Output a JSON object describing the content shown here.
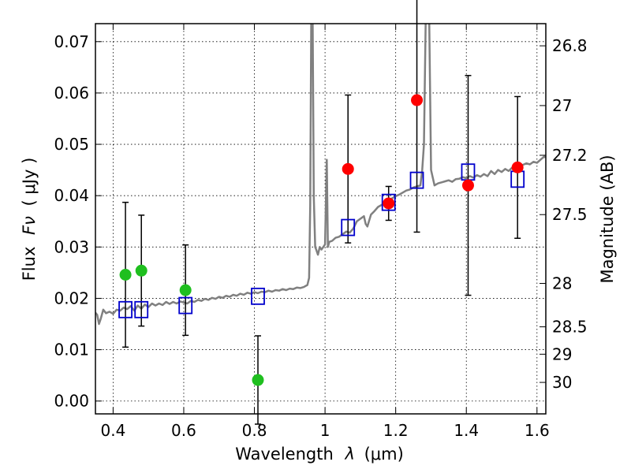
{
  "chart_data": {
    "type": "scatter",
    "xlabel_text": "Wavelength",
    "xlabel_symbol": "λ",
    "xlabel_unit": "(μm)",
    "ylabel_text": "Flux",
    "ylabel_symbol": "Fν",
    "ylabel_unit": "( μJy )",
    "y2label": "Magnitude (AB)",
    "xlim": [
      0.35,
      1.625
    ],
    "ylim": [
      -0.0025,
      0.0735
    ],
    "x_ticks": [
      0.4,
      0.6,
      0.8,
      1.0,
      1.2,
      1.4,
      1.6
    ],
    "x_tick_labels": [
      "0.4",
      "0.6",
      "0.8",
      "1",
      "1.2",
      "1.4",
      "1.6"
    ],
    "y_ticks": [
      0.0,
      0.01,
      0.02,
      0.03,
      0.04,
      0.05,
      0.06,
      0.07
    ],
    "y_tick_labels": [
      "0.00",
      "0.01",
      "0.02",
      "0.03",
      "0.04",
      "0.05",
      "0.06",
      "0.07"
    ],
    "mag_ticks": [
      {
        "mag": 26.8,
        "label": "26.8"
      },
      {
        "mag": 27.0,
        "label": "27"
      },
      {
        "mag": 27.2,
        "label": "27.2"
      },
      {
        "mag": 27.5,
        "label": "27.5"
      },
      {
        "mag": 28.0,
        "label": "28"
      },
      {
        "mag": 28.5,
        "label": "28.5"
      },
      {
        "mag": 29.0,
        "label": "29"
      },
      {
        "mag": 30.0,
        "label": "30"
      }
    ],
    "grid": true,
    "colors": {
      "green": "#1fbf1f",
      "red": "#ff0000",
      "model": "#0000cc",
      "sed": "#808080",
      "errorbar": "#000000"
    },
    "green_points": [
      {
        "x": 0.435,
        "y": 0.0246,
        "yerr_low": 0.0141,
        "yerr_high": 0.0141
      },
      {
        "x": 0.48,
        "y": 0.0254,
        "yerr_low": 0.0108,
        "yerr_high": 0.0108
      },
      {
        "x": 0.605,
        "y": 0.0216,
        "yerr_low": 0.0088,
        "yerr_high": 0.0088
      },
      {
        "x": 0.81,
        "y": 0.0041,
        "yerr_low": 0.0086,
        "yerr_high": 0.0086
      }
    ],
    "red_points": [
      {
        "x": 1.065,
        "y": 0.0452,
        "yerr_low": 0.0144,
        "yerr_high": 0.0144
      },
      {
        "x": 1.18,
        "y": 0.0385,
        "yerr_low": 0.0033,
        "yerr_high": 0.0033
      },
      {
        "x": 1.26,
        "y": 0.0586,
        "yerr_low": 0.0257,
        "yerr_high": 0.0257
      },
      {
        "x": 1.405,
        "y": 0.042,
        "yerr_low": 0.0214,
        "yerr_high": 0.0214
      },
      {
        "x": 1.545,
        "y": 0.0455,
        "yerr_low": 0.0138,
        "yerr_high": 0.0138
      }
    ],
    "model_points": [
      {
        "x": 0.435,
        "y": 0.0178
      },
      {
        "x": 0.48,
        "y": 0.0178
      },
      {
        "x": 0.605,
        "y": 0.0186
      },
      {
        "x": 0.81,
        "y": 0.0204
      },
      {
        "x": 1.065,
        "y": 0.0338
      },
      {
        "x": 1.18,
        "y": 0.0387
      },
      {
        "x": 1.26,
        "y": 0.043
      },
      {
        "x": 1.405,
        "y": 0.0446
      },
      {
        "x": 1.545,
        "y": 0.0432
      }
    ],
    "sed_curve": [
      [
        0.35,
        0.0172
      ],
      [
        0.355,
        0.0168
      ],
      [
        0.36,
        0.015
      ],
      [
        0.365,
        0.016
      ],
      [
        0.372,
        0.0178
      ],
      [
        0.38,
        0.0171
      ],
      [
        0.39,
        0.0174
      ],
      [
        0.4,
        0.017
      ],
      [
        0.41,
        0.0178
      ],
      [
        0.42,
        0.0176
      ],
      [
        0.43,
        0.0182
      ],
      [
        0.44,
        0.0179
      ],
      [
        0.45,
        0.0185
      ],
      [
        0.46,
        0.0176
      ],
      [
        0.47,
        0.0186
      ],
      [
        0.48,
        0.018
      ],
      [
        0.49,
        0.0188
      ],
      [
        0.5,
        0.0183
      ],
      [
        0.51,
        0.019
      ],
      [
        0.52,
        0.0186
      ],
      [
        0.53,
        0.019
      ],
      [
        0.54,
        0.0187
      ],
      [
        0.55,
        0.0193
      ],
      [
        0.56,
        0.0189
      ],
      [
        0.57,
        0.0193
      ],
      [
        0.58,
        0.019
      ],
      [
        0.59,
        0.0194
      ],
      [
        0.6,
        0.0192
      ],
      [
        0.61,
        0.019
      ],
      [
        0.62,
        0.0195
      ],
      [
        0.63,
        0.0193
      ],
      [
        0.64,
        0.0197
      ],
      [
        0.65,
        0.0195
      ],
      [
        0.66,
        0.0199
      ],
      [
        0.67,
        0.0197
      ],
      [
        0.68,
        0.0201
      ],
      [
        0.69,
        0.0199
      ],
      [
        0.7,
        0.0203
      ],
      [
        0.71,
        0.0201
      ],
      [
        0.72,
        0.0205
      ],
      [
        0.73,
        0.0203
      ],
      [
        0.74,
        0.0207
      ],
      [
        0.75,
        0.0205
      ],
      [
        0.76,
        0.0209
      ],
      [
        0.77,
        0.0207
      ],
      [
        0.78,
        0.0211
      ],
      [
        0.79,
        0.0209
      ],
      [
        0.8,
        0.0212
      ],
      [
        0.81,
        0.021
      ],
      [
        0.82,
        0.0213
      ],
      [
        0.83,
        0.0212
      ],
      [
        0.84,
        0.0215
      ],
      [
        0.85,
        0.0213
      ],
      [
        0.86,
        0.0216
      ],
      [
        0.87,
        0.0215
      ],
      [
        0.88,
        0.0218
      ],
      [
        0.89,
        0.0216
      ],
      [
        0.9,
        0.0219
      ],
      [
        0.91,
        0.0218
      ],
      [
        0.92,
        0.0221
      ],
      [
        0.93,
        0.022
      ],
      [
        0.94,
        0.0222
      ],
      [
        0.95,
        0.0226
      ],
      [
        0.955,
        0.024
      ],
      [
        0.958,
        0.038
      ],
      [
        0.961,
        0.074
      ],
      [
        0.965,
        0.074
      ],
      [
        0.968,
        0.04
      ],
      [
        0.972,
        0.03
      ],
      [
        0.975,
        0.0295
      ],
      [
        0.98,
        0.0285
      ],
      [
        0.985,
        0.03
      ],
      [
        0.99,
        0.0295
      ],
      [
        1.0,
        0.0305
      ],
      [
        1.005,
        0.047
      ],
      [
        1.008,
        0.03
      ],
      [
        1.012,
        0.031
      ],
      [
        1.02,
        0.0312
      ],
      [
        1.03,
        0.0318
      ],
      [
        1.04,
        0.032
      ],
      [
        1.05,
        0.0325
      ],
      [
        1.06,
        0.033
      ],
      [
        1.07,
        0.0328
      ],
      [
        1.08,
        0.0336
      ],
      [
        1.09,
        0.035
      ],
      [
        1.1,
        0.0355
      ],
      [
        1.11,
        0.036
      ],
      [
        1.115,
        0.0345
      ],
      [
        1.12,
        0.034
      ],
      [
        1.13,
        0.0363
      ],
      [
        1.14,
        0.037
      ],
      [
        1.15,
        0.0378
      ],
      [
        1.16,
        0.0382
      ],
      [
        1.17,
        0.0386
      ],
      [
        1.18,
        0.0391
      ],
      [
        1.19,
        0.0395
      ],
      [
        1.2,
        0.0399
      ],
      [
        1.21,
        0.0402
      ],
      [
        1.22,
        0.0406
      ],
      [
        1.23,
        0.041
      ],
      [
        1.24,
        0.0412
      ],
      [
        1.25,
        0.0416
      ],
      [
        1.26,
        0.0418
      ],
      [
        1.27,
        0.042
      ],
      [
        1.275,
        0.045
      ],
      [
        1.28,
        0.05
      ],
      [
        1.285,
        0.074
      ],
      [
        1.295,
        0.074
      ],
      [
        1.3,
        0.045
      ],
      [
        1.31,
        0.042
      ],
      [
        1.32,
        0.0424
      ],
      [
        1.33,
        0.0426
      ],
      [
        1.34,
        0.0428
      ],
      [
        1.35,
        0.043
      ],
      [
        1.36,
        0.0427
      ],
      [
        1.37,
        0.0432
      ],
      [
        1.38,
        0.0433
      ],
      [
        1.39,
        0.0436
      ],
      [
        1.4,
        0.0434
      ],
      [
        1.41,
        0.0438
      ],
      [
        1.42,
        0.0435
      ],
      [
        1.43,
        0.044
      ],
      [
        1.44,
        0.0437
      ],
      [
        1.45,
        0.0442
      ],
      [
        1.46,
        0.0438
      ],
      [
        1.47,
        0.0448
      ],
      [
        1.48,
        0.0442
      ],
      [
        1.49,
        0.045
      ],
      [
        1.5,
        0.0446
      ],
      [
        1.51,
        0.0452
      ],
      [
        1.52,
        0.0448
      ],
      [
        1.53,
        0.0455
      ],
      [
        1.54,
        0.045
      ],
      [
        1.55,
        0.0458
      ],
      [
        1.56,
        0.046
      ],
      [
        1.57,
        0.0463
      ],
      [
        1.58,
        0.0461
      ],
      [
        1.59,
        0.0466
      ],
      [
        1.6,
        0.0464
      ],
      [
        1.61,
        0.047
      ],
      [
        1.62,
        0.0476
      ],
      [
        1.625,
        0.0475
      ]
    ]
  }
}
